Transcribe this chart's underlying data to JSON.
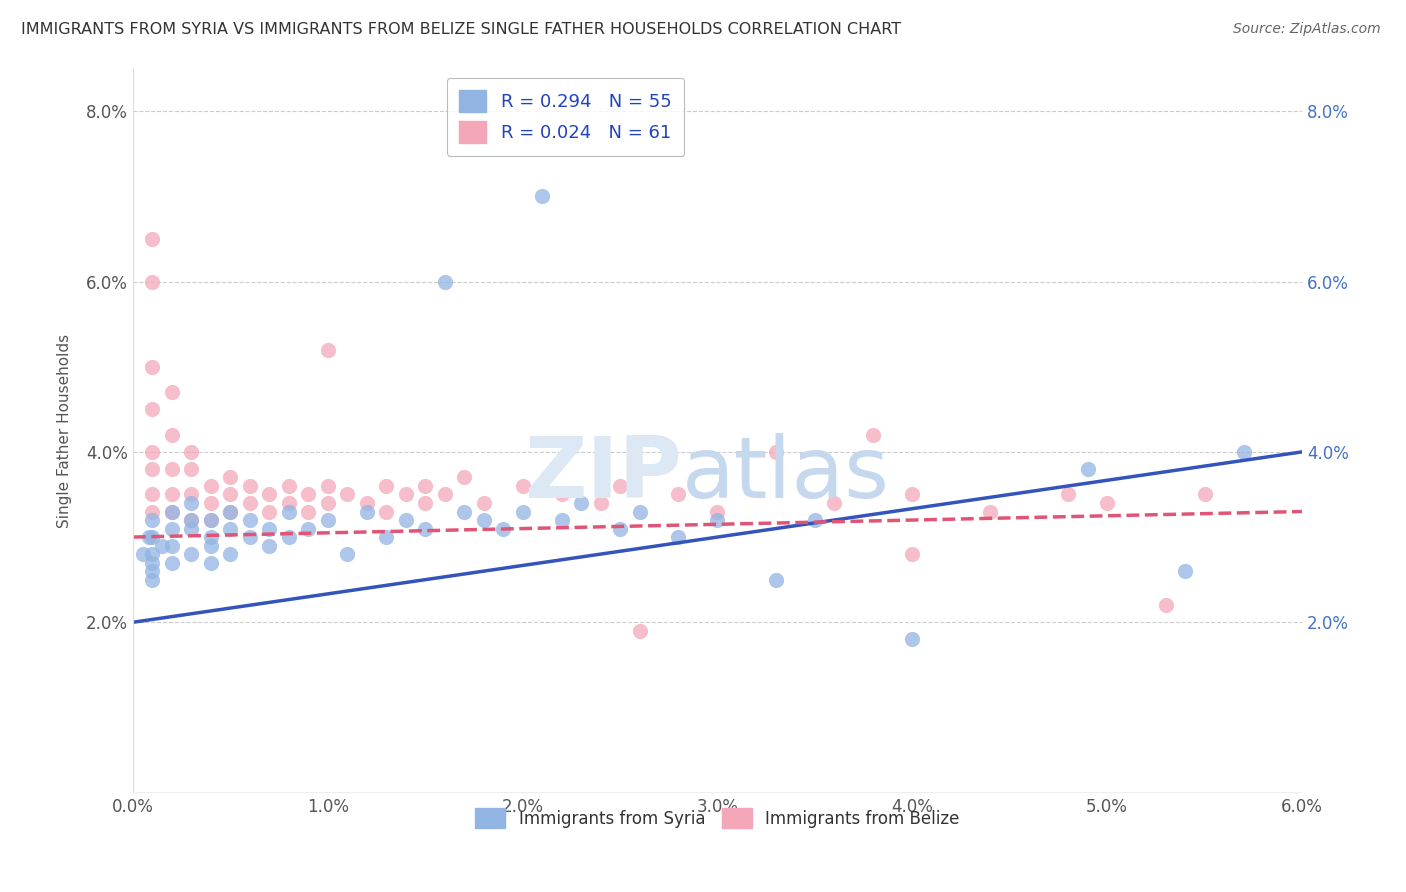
{
  "title": "IMMIGRANTS FROM SYRIA VS IMMIGRANTS FROM BELIZE SINGLE FATHER HOUSEHOLDS CORRELATION CHART",
  "source": "Source: ZipAtlas.com",
  "ylabel": "Single Father Households",
  "xlim": [
    0.0,
    0.06
  ],
  "ylim": [
    0.0,
    0.085
  ],
  "xticks": [
    0.0,
    0.01,
    0.02,
    0.03,
    0.04,
    0.05,
    0.06
  ],
  "yticks": [
    0.0,
    0.02,
    0.04,
    0.06,
    0.08
  ],
  "ytick_labels_left": [
    "",
    "2.0%",
    "4.0%",
    "6.0%",
    "8.0%"
  ],
  "ytick_labels_right": [
    "",
    "2.0%",
    "4.0%",
    "6.0%",
    "8.0%"
  ],
  "xtick_labels": [
    "0.0%",
    "1.0%",
    "2.0%",
    "3.0%",
    "4.0%",
    "5.0%",
    "6.0%"
  ],
  "syria_color": "#92b4e3",
  "belize_color": "#f4a7b9",
  "syria_line_color": "#3355bb",
  "belize_line_color": "#e05575",
  "syria_R": 0.294,
  "syria_N": 55,
  "belize_R": 0.024,
  "belize_N": 61,
  "syria_line": [
    [
      0.0,
      0.02
    ],
    [
      0.06,
      0.04
    ]
  ],
  "belize_line": [
    [
      0.0,
      0.03
    ],
    [
      0.06,
      0.033
    ]
  ],
  "syria_points": [
    [
      0.0005,
      0.028
    ],
    [
      0.0008,
      0.03
    ],
    [
      0.001,
      0.026
    ],
    [
      0.001,
      0.028
    ],
    [
      0.001,
      0.03
    ],
    [
      0.001,
      0.032
    ],
    [
      0.001,
      0.027
    ],
    [
      0.001,
      0.025
    ],
    [
      0.0015,
      0.029
    ],
    [
      0.002,
      0.027
    ],
    [
      0.002,
      0.031
    ],
    [
      0.002,
      0.033
    ],
    [
      0.002,
      0.029
    ],
    [
      0.003,
      0.031
    ],
    [
      0.003,
      0.028
    ],
    [
      0.003,
      0.032
    ],
    [
      0.003,
      0.034
    ],
    [
      0.004,
      0.03
    ],
    [
      0.004,
      0.032
    ],
    [
      0.004,
      0.027
    ],
    [
      0.004,
      0.029
    ],
    [
      0.005,
      0.031
    ],
    [
      0.005,
      0.033
    ],
    [
      0.005,
      0.028
    ],
    [
      0.006,
      0.03
    ],
    [
      0.006,
      0.032
    ],
    [
      0.007,
      0.031
    ],
    [
      0.007,
      0.029
    ],
    [
      0.008,
      0.033
    ],
    [
      0.008,
      0.03
    ],
    [
      0.009,
      0.031
    ],
    [
      0.01,
      0.032
    ],
    [
      0.011,
      0.028
    ],
    [
      0.012,
      0.033
    ],
    [
      0.013,
      0.03
    ],
    [
      0.014,
      0.032
    ],
    [
      0.015,
      0.031
    ],
    [
      0.016,
      0.06
    ],
    [
      0.017,
      0.033
    ],
    [
      0.018,
      0.032
    ],
    [
      0.019,
      0.031
    ],
    [
      0.02,
      0.033
    ],
    [
      0.021,
      0.07
    ],
    [
      0.022,
      0.032
    ],
    [
      0.023,
      0.034
    ],
    [
      0.025,
      0.031
    ],
    [
      0.026,
      0.033
    ],
    [
      0.028,
      0.03
    ],
    [
      0.03,
      0.032
    ],
    [
      0.033,
      0.025
    ],
    [
      0.035,
      0.032
    ],
    [
      0.04,
      0.018
    ],
    [
      0.049,
      0.038
    ],
    [
      0.054,
      0.026
    ],
    [
      0.057,
      0.04
    ]
  ],
  "belize_points": [
    [
      0.001,
      0.065
    ],
    [
      0.001,
      0.06
    ],
    [
      0.001,
      0.05
    ],
    [
      0.001,
      0.045
    ],
    [
      0.001,
      0.04
    ],
    [
      0.001,
      0.038
    ],
    [
      0.001,
      0.035
    ],
    [
      0.001,
      0.033
    ],
    [
      0.002,
      0.047
    ],
    [
      0.002,
      0.042
    ],
    [
      0.002,
      0.038
    ],
    [
      0.002,
      0.035
    ],
    [
      0.002,
      0.033
    ],
    [
      0.003,
      0.04
    ],
    [
      0.003,
      0.038
    ],
    [
      0.003,
      0.035
    ],
    [
      0.003,
      0.032
    ],
    [
      0.004,
      0.036
    ],
    [
      0.004,
      0.034
    ],
    [
      0.004,
      0.032
    ],
    [
      0.005,
      0.037
    ],
    [
      0.005,
      0.035
    ],
    [
      0.005,
      0.033
    ],
    [
      0.006,
      0.036
    ],
    [
      0.006,
      0.034
    ],
    [
      0.007,
      0.035
    ],
    [
      0.007,
      0.033
    ],
    [
      0.008,
      0.036
    ],
    [
      0.008,
      0.034
    ],
    [
      0.009,
      0.035
    ],
    [
      0.009,
      0.033
    ],
    [
      0.01,
      0.052
    ],
    [
      0.01,
      0.036
    ],
    [
      0.01,
      0.034
    ],
    [
      0.011,
      0.035
    ],
    [
      0.012,
      0.034
    ],
    [
      0.013,
      0.036
    ],
    [
      0.013,
      0.033
    ],
    [
      0.014,
      0.035
    ],
    [
      0.015,
      0.036
    ],
    [
      0.015,
      0.034
    ],
    [
      0.016,
      0.035
    ],
    [
      0.017,
      0.037
    ],
    [
      0.018,
      0.034
    ],
    [
      0.02,
      0.036
    ],
    [
      0.022,
      0.035
    ],
    [
      0.024,
      0.034
    ],
    [
      0.025,
      0.036
    ],
    [
      0.026,
      0.019
    ],
    [
      0.028,
      0.035
    ],
    [
      0.03,
      0.033
    ],
    [
      0.033,
      0.04
    ],
    [
      0.036,
      0.034
    ],
    [
      0.038,
      0.042
    ],
    [
      0.04,
      0.028
    ],
    [
      0.04,
      0.035
    ],
    [
      0.044,
      0.033
    ],
    [
      0.048,
      0.035
    ],
    [
      0.05,
      0.034
    ],
    [
      0.053,
      0.022
    ],
    [
      0.055,
      0.035
    ]
  ],
  "background_color": "#ffffff",
  "grid_color": "#cccccc"
}
